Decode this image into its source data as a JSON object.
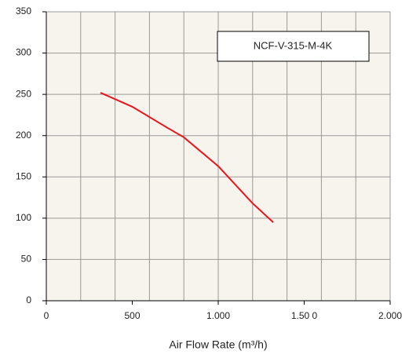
{
  "chart_data": {
    "type": "line",
    "x_label": "Air Flow Rate (m³/h)",
    "x": [
      315,
      500,
      700,
      800,
      1000,
      1200,
      1320
    ],
    "series": [
      {
        "name": "NCF-V-315-M-4K",
        "color": "#e8141c",
        "values": [
          252,
          235,
          210,
          198,
          163,
          118,
          95
        ]
      }
    ],
    "xlim": [
      0,
      2000
    ],
    "xticks": [
      0,
      500,
      {
        "value": 1000,
        "label": "1.000"
      },
      {
        "value": 1500,
        "label": "1.50 0"
      },
      {
        "value": 2000,
        "label": "2.000"
      }
    ],
    "xgrid": [
      200,
      400,
      600,
      800,
      1000,
      1200,
      1400,
      1600,
      1800,
      2000
    ],
    "ylim": [
      0,
      350
    ],
    "yticks": [
      0,
      50,
      100,
      150,
      200,
      250,
      300,
      350
    ],
    "grid": true,
    "legend": "upper right"
  }
}
